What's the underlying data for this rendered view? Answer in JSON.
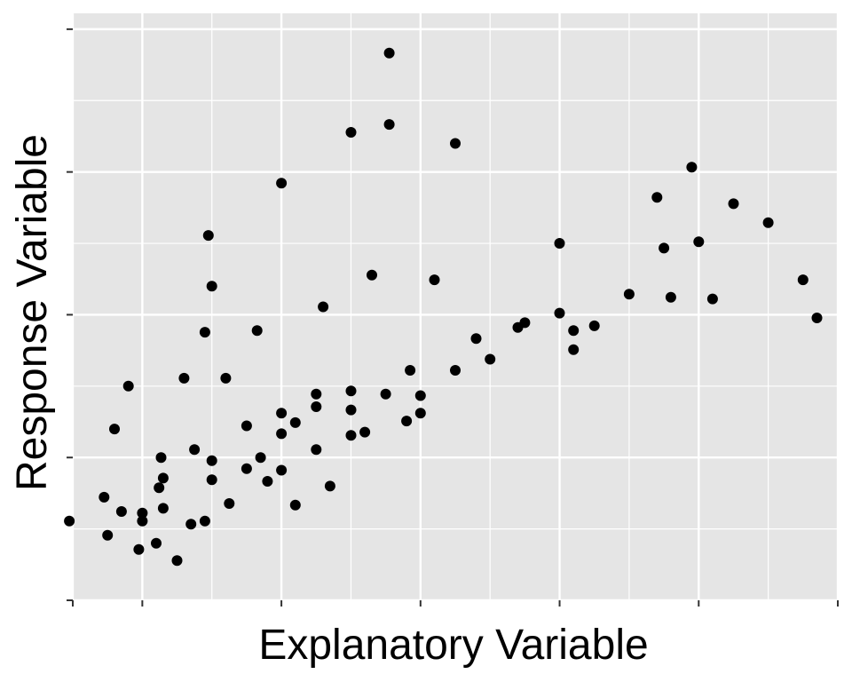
{
  "chart_data": {
    "type": "scatter",
    "title": "",
    "xlabel": "Explanatory Variable",
    "ylabel": "Response Variable",
    "tick_labels_shown": false,
    "grid": true,
    "legend": "none",
    "xlim": [
      -1,
      10
    ],
    "ylim": [
      -2,
      35
    ],
    "x_major_ticks": [
      -1,
      0,
      2,
      4,
      6,
      8,
      10
    ],
    "x_minor_ticks": [
      1,
      3,
      5,
      7,
      9
    ],
    "y_major_ticks": [
      -2,
      7,
      16,
      25,
      34
    ],
    "y_minor_ticks": [
      2.5,
      11.5,
      20.5,
      29.5
    ],
    "colors": {
      "panel": "#e5e5e5",
      "grid": "#ffffff",
      "points": "#000000"
    },
    "points": [
      [
        -0.5,
        2.1
      ],
      [
        -0.05,
        1.2
      ],
      [
        0.0,
        3.5
      ],
      [
        0.2,
        1.6
      ],
      [
        0.24,
        5.1
      ],
      [
        0.27,
        7.0
      ],
      [
        0.5,
        0.5
      ],
      [
        0.7,
        2.8
      ],
      [
        0.9,
        3.0
      ],
      [
        1.0,
        5.6
      ],
      [
        1.0,
        6.8
      ],
      [
        1.25,
        4.1
      ],
      [
        1.5,
        6.3
      ],
      [
        1.8,
        5.5
      ],
      [
        2.0,
        6.2
      ],
      [
        2.0,
        8.5
      ],
      [
        2.0,
        9.8
      ],
      [
        2.2,
        9.2
      ],
      [
        2.5,
        10.2
      ],
      [
        2.5,
        11.0
      ],
      [
        2.5,
        7.5
      ],
      [
        3.0,
        11.2
      ],
      [
        3.0,
        10.0
      ],
      [
        3.0,
        8.4
      ],
      [
        3.2,
        8.6
      ],
      [
        3.5,
        11.0
      ],
      [
        3.8,
        9.3
      ],
      [
        3.85,
        12.5
      ],
      [
        4.0,
        9.8
      ],
      [
        4.0,
        10.9
      ],
      [
        4.5,
        12.5
      ],
      [
        4.8,
        14.5
      ],
      [
        5.0,
        13.2
      ],
      [
        5.5,
        15.5
      ],
      [
        6.0,
        16.1
      ],
      [
        6.2,
        15.0
      ],
      [
        7.0,
        17.3
      ],
      [
        7.6,
        17.1
      ],
      [
        8.0,
        20.6
      ],
      [
        8.2,
        17.0
      ],
      [
        -0.55,
        4.5
      ],
      [
        -0.2,
        11.5
      ],
      [
        -0.4,
        8.8
      ],
      [
        0.6,
        12.0
      ],
      [
        1.0,
        17.8
      ],
      [
        2.0,
        24.3
      ],
      [
        3.0,
        27.5
      ],
      [
        3.55,
        32.5
      ],
      [
        3.55,
        28.0
      ],
      [
        4.5,
        26.8
      ],
      [
        6.0,
        20.5
      ],
      [
        7.9,
        25.3
      ],
      [
        8.5,
        23.0
      ],
      [
        9.0,
        21.8
      ],
      [
        9.5,
        18.2
      ],
      [
        9.7,
        15.8
      ],
      [
        7.4,
        23.4
      ],
      [
        0.95,
        21.0
      ],
      [
        0.0,
        3.0
      ],
      [
        0.3,
        5.7
      ],
      [
        1.5,
        9.0
      ],
      [
        1.7,
        7.0
      ],
      [
        2.2,
        4.0
      ],
      [
        2.7,
        5.2
      ],
      [
        1.2,
        12.0
      ],
      [
        1.65,
        15.0
      ],
      [
        0.9,
        14.9
      ],
      [
        2.6,
        16.5
      ],
      [
        3.3,
        18.5
      ],
      [
        4.2,
        18.2
      ],
      [
        5.4,
        15.2
      ],
      [
        6.2,
        13.8
      ],
      [
        6.5,
        15.3
      ],
      [
        7.5,
        20.2
      ],
      [
        -1.05,
        3.0
      ],
      [
        -0.3,
        3.6
      ],
      [
        0.3,
        3.8
      ],
      [
        0.75,
        7.5
      ]
    ]
  }
}
